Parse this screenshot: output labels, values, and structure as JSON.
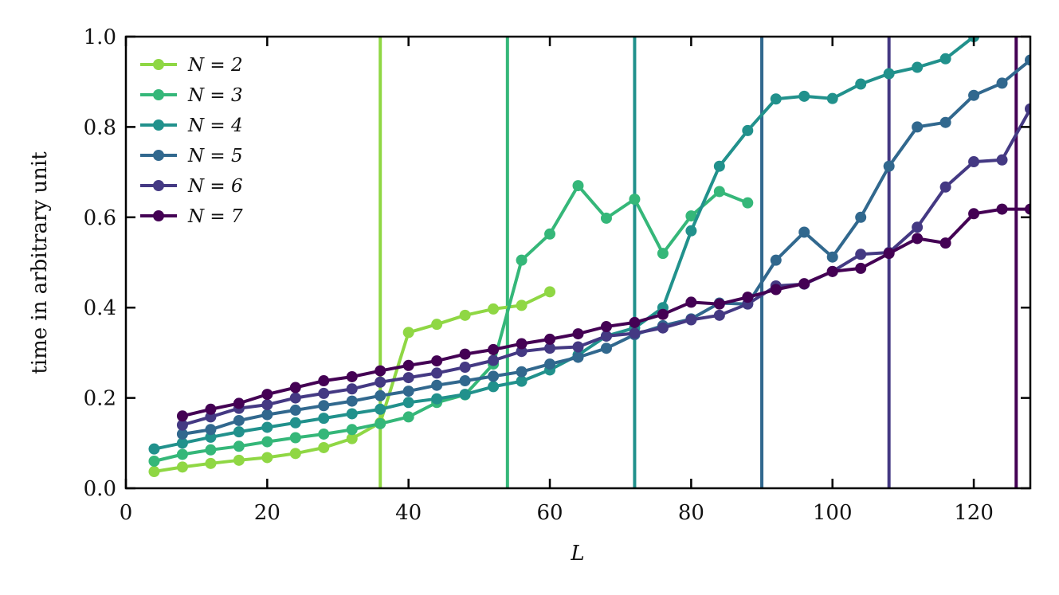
{
  "chart_data": {
    "type": "line",
    "xlabel": "L",
    "ylabel": "time in arbitrary unit",
    "xlim": [
      0,
      128
    ],
    "ylim": [
      0,
      1.0
    ],
    "xticks": [
      0,
      20,
      40,
      60,
      80,
      100,
      120
    ],
    "yticks": [
      0.0,
      0.2,
      0.4,
      0.6,
      0.8,
      1.0
    ],
    "xtick_labels": [
      "0",
      "20",
      "40",
      "60",
      "80",
      "100",
      "120"
    ],
    "ytick_labels": [
      "0.0",
      "0.2",
      "0.4",
      "0.6",
      "0.8",
      "1.0"
    ],
    "legend_position": "top-left",
    "grid": false,
    "series": [
      {
        "name": "N = 2",
        "color": "#8fd744",
        "vline": 36,
        "x": [
          4,
          8,
          12,
          16,
          20,
          24,
          28,
          32,
          36,
          40,
          44,
          48,
          52,
          56,
          60
        ],
        "y": [
          0.037,
          0.047,
          0.055,
          0.062,
          0.068,
          0.077,
          0.09,
          0.11,
          0.145,
          0.345,
          0.363,
          0.383,
          0.397,
          0.405,
          0.435
        ]
      },
      {
        "name": "N = 3",
        "color": "#35b779",
        "vline": 54,
        "x": [
          4,
          8,
          12,
          16,
          20,
          24,
          28,
          32,
          36,
          40,
          44,
          48,
          52,
          56,
          60,
          64,
          68,
          72,
          76,
          80,
          84,
          88
        ],
        "y": [
          0.06,
          0.075,
          0.085,
          0.093,
          0.103,
          0.112,
          0.12,
          0.13,
          0.143,
          0.158,
          0.19,
          0.207,
          0.275,
          0.505,
          0.563,
          0.67,
          0.598,
          0.64,
          0.52,
          0.603,
          0.657,
          0.632
        ]
      },
      {
        "name": "N = 4",
        "color": "#21918c",
        "vline": 72,
        "x": [
          4,
          8,
          12,
          16,
          20,
          24,
          28,
          32,
          36,
          40,
          44,
          48,
          52,
          56,
          60,
          64,
          68,
          72,
          76,
          80,
          84,
          88,
          92,
          96,
          100,
          104,
          108,
          112,
          116,
          120
        ],
        "y": [
          0.087,
          0.1,
          0.113,
          0.125,
          0.135,
          0.145,
          0.155,
          0.165,
          0.175,
          0.19,
          0.198,
          0.208,
          0.225,
          0.237,
          0.262,
          0.295,
          0.337,
          0.355,
          0.4,
          0.57,
          0.713,
          0.792,
          0.862,
          0.868,
          0.863,
          0.895,
          0.918,
          0.932,
          0.951,
          1.0
        ]
      },
      {
        "name": "N = 5",
        "color": "#31688e",
        "vline": 90,
        "x": [
          8,
          12,
          16,
          20,
          24,
          28,
          32,
          36,
          40,
          44,
          48,
          52,
          56,
          60,
          64,
          68,
          72,
          76,
          80,
          84,
          88,
          92,
          96,
          100,
          104,
          108,
          112,
          116,
          120,
          124,
          128
        ],
        "y": [
          0.12,
          0.13,
          0.15,
          0.163,
          0.173,
          0.183,
          0.193,
          0.205,
          0.215,
          0.228,
          0.238,
          0.248,
          0.258,
          0.275,
          0.29,
          0.31,
          0.34,
          0.36,
          0.375,
          0.41,
          0.408,
          0.505,
          0.567,
          0.512,
          0.6,
          0.713,
          0.8,
          0.81,
          0.87,
          0.897,
          0.948
        ]
      },
      {
        "name": "N = 6",
        "color": "#443983",
        "vline": 108,
        "x": [
          8,
          12,
          16,
          20,
          24,
          28,
          32,
          36,
          40,
          44,
          48,
          52,
          56,
          60,
          64,
          68,
          72,
          76,
          80,
          84,
          88,
          92,
          96,
          100,
          104,
          108,
          112,
          116,
          120,
          124,
          128
        ],
        "y": [
          0.14,
          0.158,
          0.177,
          0.185,
          0.2,
          0.21,
          0.22,
          0.235,
          0.245,
          0.255,
          0.268,
          0.283,
          0.303,
          0.31,
          0.313,
          0.337,
          0.343,
          0.355,
          0.373,
          0.383,
          0.408,
          0.448,
          0.452,
          0.48,
          0.518,
          0.522,
          0.578,
          0.667,
          0.723,
          0.727,
          0.84
        ]
      },
      {
        "name": "N = 7",
        "color": "#440154",
        "vline": 126,
        "x": [
          8,
          12,
          16,
          20,
          24,
          28,
          32,
          36,
          40,
          44,
          48,
          52,
          56,
          60,
          64,
          68,
          72,
          76,
          80,
          84,
          88,
          92,
          96,
          100,
          104,
          108,
          112,
          116,
          120,
          124,
          128
        ],
        "y": [
          0.16,
          0.175,
          0.188,
          0.208,
          0.223,
          0.238,
          0.247,
          0.26,
          0.272,
          0.282,
          0.297,
          0.307,
          0.32,
          0.33,
          0.342,
          0.358,
          0.367,
          0.385,
          0.412,
          0.408,
          0.423,
          0.44,
          0.453,
          0.48,
          0.487,
          0.52,
          0.553,
          0.543,
          0.608,
          0.618,
          0.618
        ]
      }
    ]
  }
}
